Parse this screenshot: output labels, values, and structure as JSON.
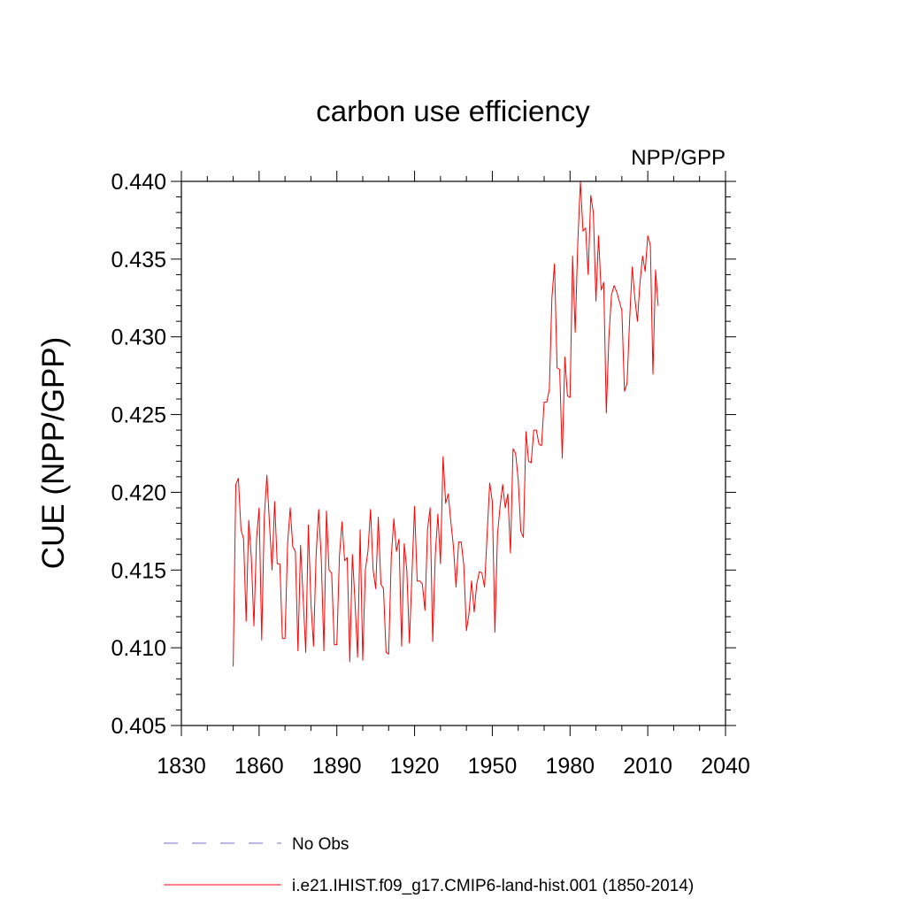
{
  "chart_data": {
    "type": "line",
    "title": "carbon use efficiency",
    "subtitle": "NPP/GPP",
    "xlabel": "",
    "ylabel": "CUE  (NPP/GPP)",
    "xlim": [
      1830,
      2040
    ],
    "ylim": [
      0.405,
      0.44
    ],
    "x_ticks": [
      1830,
      1860,
      1890,
      1920,
      1950,
      1980,
      2010,
      2040
    ],
    "x_tick_labels": [
      "1830",
      "1860",
      "1890",
      "1920",
      "1950",
      "1980",
      "2010",
      "2040"
    ],
    "y_ticks": [
      0.405,
      0.41,
      0.415,
      0.42,
      0.425,
      0.43,
      0.435,
      0.44
    ],
    "y_tick_labels": [
      "0.405",
      "0.410",
      "0.415",
      "0.420",
      "0.425",
      "0.430",
      "0.435",
      "0.440"
    ],
    "grid": false,
    "legend_position": "bottom",
    "series": [
      {
        "name": "No Obs",
        "color": "#7b6fd0",
        "dash": "dashed",
        "values": []
      },
      {
        "name": "i.e21.IHIST.f09_g17.CMIP6-land-hist.001 (1850-2014)",
        "color": "#ff0000",
        "dash": "solid",
        "x": [
          1850,
          1851,
          1852,
          1853,
          1854,
          1855,
          1856,
          1857,
          1858,
          1859,
          1860,
          1861,
          1862,
          1863,
          1864,
          1865,
          1866,
          1867,
          1868,
          1869,
          1870,
          1871,
          1872,
          1873,
          1874,
          1875,
          1876,
          1877,
          1878,
          1879,
          1880,
          1881,
          1882,
          1883,
          1884,
          1885,
          1886,
          1887,
          1888,
          1889,
          1890,
          1891,
          1892,
          1893,
          1894,
          1895,
          1896,
          1897,
          1898,
          1899,
          1900,
          1901,
          1902,
          1903,
          1904,
          1905,
          1906,
          1907,
          1908,
          1909,
          1910,
          1911,
          1912,
          1913,
          1914,
          1915,
          1916,
          1917,
          1918,
          1919,
          1920,
          1921,
          1922,
          1923,
          1924,
          1925,
          1926,
          1927,
          1928,
          1929,
          1930,
          1931,
          1932,
          1933,
          1934,
          1935,
          1936,
          1937,
          1938,
          1939,
          1940,
          1941,
          1942,
          1943,
          1944,
          1945,
          1946,
          1947,
          1948,
          1949,
          1950,
          1951,
          1952,
          1953,
          1954,
          1955,
          1956,
          1957,
          1958,
          1959,
          1960,
          1961,
          1962,
          1963,
          1964,
          1965,
          1966,
          1967,
          1968,
          1969,
          1970,
          1971,
          1972,
          1973,
          1974,
          1975,
          1976,
          1977,
          1978,
          1979,
          1980,
          1981,
          1982,
          1983,
          1984,
          1985,
          1986,
          1987,
          1988,
          1989,
          1990,
          1991,
          1992,
          1993,
          1994,
          1995,
          1996,
          1997,
          1998,
          1999,
          2000,
          2001,
          2002,
          2003,
          2004,
          2005,
          2006,
          2007,
          2008,
          2009,
          2010,
          2011,
          2012,
          2013,
          2014
        ],
        "values": [
          0.4088,
          0.4205,
          0.4209,
          0.4176,
          0.417,
          0.4117,
          0.4182,
          0.4158,
          0.4114,
          0.417,
          0.419,
          0.4105,
          0.4184,
          0.4211,
          0.418,
          0.415,
          0.4194,
          0.4154,
          0.4154,
          0.4106,
          0.4106,
          0.4167,
          0.419,
          0.4165,
          0.4162,
          0.4098,
          0.4166,
          0.4132,
          0.4097,
          0.4179,
          0.4129,
          0.4101,
          0.416,
          0.4189,
          0.4157,
          0.4098,
          0.4188,
          0.415,
          0.4148,
          0.4102,
          0.4102,
          0.4159,
          0.4181,
          0.4156,
          0.4158,
          0.4091,
          0.416,
          0.413,
          0.4094,
          0.4176,
          0.4092,
          0.415,
          0.4162,
          0.4189,
          0.415,
          0.4138,
          0.4184,
          0.4141,
          0.4138,
          0.4097,
          0.4096,
          0.4158,
          0.4183,
          0.4162,
          0.417,
          0.4101,
          0.4167,
          0.415,
          0.4103,
          0.4148,
          0.4191,
          0.4143,
          0.4143,
          0.4141,
          0.4124,
          0.4176,
          0.419,
          0.4104,
          0.416,
          0.4186,
          0.4154,
          0.4223,
          0.4193,
          0.4199,
          0.4181,
          0.4165,
          0.4139,
          0.4168,
          0.4168,
          0.4153,
          0.4111,
          0.4122,
          0.4143,
          0.4123,
          0.4141,
          0.4149,
          0.4148,
          0.4139,
          0.4173,
          0.4206,
          0.4194,
          0.411,
          0.4173,
          0.4191,
          0.4205,
          0.419,
          0.4199,
          0.4161,
          0.4228,
          0.4225,
          0.4208,
          0.4175,
          0.4171,
          0.4239,
          0.422,
          0.4219,
          0.424,
          0.424,
          0.4231,
          0.423,
          0.4258,
          0.4258,
          0.4266,
          0.4325,
          0.4347,
          0.428,
          0.4279,
          0.4222,
          0.4287,
          0.4262,
          0.4261,
          0.4352,
          0.4303,
          0.4361,
          0.44,
          0.4368,
          0.437,
          0.434,
          0.4391,
          0.438,
          0.4323,
          0.4365,
          0.433,
          0.4335,
          0.4251,
          0.43,
          0.4327,
          0.4333,
          0.4329,
          0.4323,
          0.4317,
          0.4265,
          0.427,
          0.4311,
          0.4345,
          0.4325,
          0.431,
          0.4335,
          0.4352,
          0.4342,
          0.4365,
          0.4359,
          0.4276,
          0.4343,
          0.432
        ]
      }
    ]
  }
}
